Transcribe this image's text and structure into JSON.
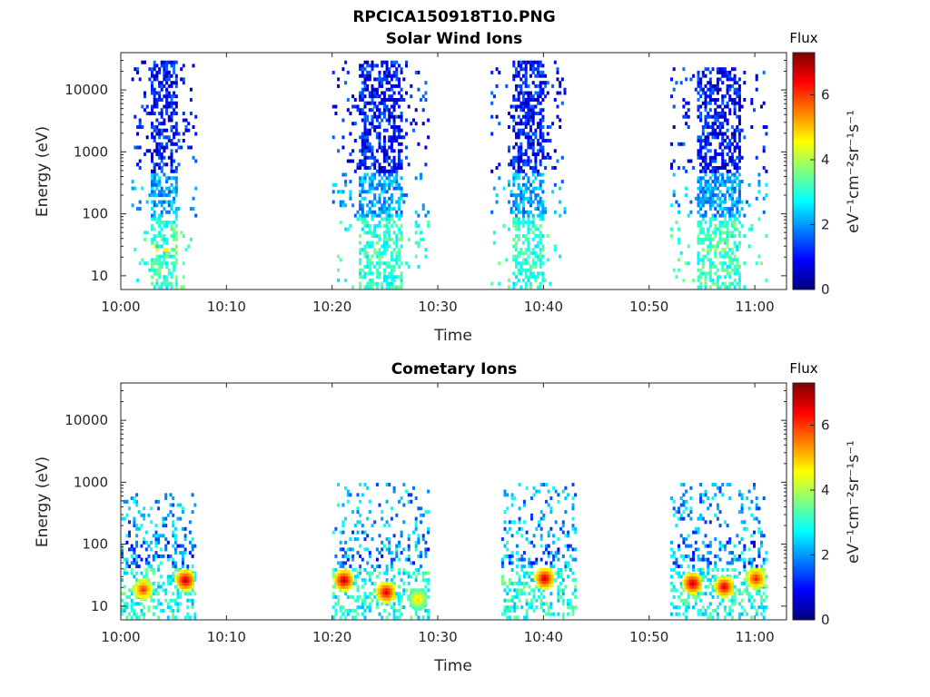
{
  "figure_title": "RPCICA150918T10.PNG",
  "colormap": [
    "#00007f",
    "#0000ff",
    "#007fff",
    "#00ffff",
    "#7fff7f",
    "#ffff00",
    "#ff7f00",
    "#ff0000",
    "#7f0000"
  ],
  "chart_data": [
    {
      "type": "heatmap",
      "title": "Solar Wind Ions",
      "xlabel": "Time",
      "ylabel": "Energy (eV)",
      "x_ticks": [
        "10:00",
        "10:10",
        "10:20",
        "10:30",
        "10:40",
        "10:50",
        "11:00"
      ],
      "xlim": [
        "10:00",
        "11:03"
      ],
      "y_scale": "log",
      "y_ticks": [
        {
          "value": 10,
          "label": "10"
        },
        {
          "value": 100,
          "label": "100"
        },
        {
          "value": 1000,
          "label": "1000"
        },
        {
          "value": 10000,
          "label": "10000"
        }
      ],
      "ylim": [
        6,
        40000
      ],
      "colorbar": {
        "title": "Flux",
        "label": "eV⁻¹cm⁻²sr⁻¹s⁻¹",
        "range": [
          0,
          7.3
        ],
        "ticks": [
          "0",
          "2",
          "4",
          "6"
        ]
      },
      "bursts": [
        {
          "t0": "10:01",
          "t1": "10:07",
          "emax": 30000,
          "peak_flux": 4.6,
          "peak_energy": 30
        },
        {
          "t0": "10:20",
          "t1": "10:29",
          "emax": 30000,
          "peak_flux": 3.2,
          "peak_energy": 15
        },
        {
          "t0": "10:35",
          "t1": "10:42",
          "emax": 30000,
          "peak_flux": 3.0,
          "peak_energy": 15
        },
        {
          "t0": "10:52",
          "t1": "11:01",
          "emax": 25000,
          "peak_flux": 3.8,
          "peak_energy": 30
        }
      ]
    },
    {
      "type": "heatmap",
      "title": "Cometary Ions",
      "xlabel": "Time",
      "ylabel": "Energy (eV)",
      "x_ticks": [
        "10:00",
        "10:10",
        "10:20",
        "10:30",
        "10:40",
        "10:50",
        "11:00"
      ],
      "xlim": [
        "10:00",
        "11:03"
      ],
      "y_scale": "log",
      "y_ticks": [
        {
          "value": 10,
          "label": "10"
        },
        {
          "value": 100,
          "label": "100"
        },
        {
          "value": 1000,
          "label": "1000"
        },
        {
          "value": 10000,
          "label": "10000"
        }
      ],
      "ylim": [
        6,
        40000
      ],
      "colorbar": {
        "title": "Flux",
        "label": "eV⁻¹cm⁻²sr⁻¹s⁻¹",
        "range": [
          0,
          7.3
        ],
        "ticks": [
          "0",
          "2",
          "4",
          "6"
        ]
      },
      "hotspots": [
        {
          "time": "10:02",
          "energy": 20,
          "flux": 6.2
        },
        {
          "time": "10:06",
          "energy": 28,
          "flux": 7.0
        },
        {
          "time": "10:21",
          "energy": 28,
          "flux": 7.0
        },
        {
          "time": "10:25",
          "energy": 18,
          "flux": 6.8
        },
        {
          "time": "10:28",
          "energy": 14,
          "flux": 5.0
        },
        {
          "time": "10:40",
          "energy": 30,
          "flux": 6.9
        },
        {
          "time": "10:54",
          "energy": 25,
          "flux": 7.0
        },
        {
          "time": "10:57",
          "energy": 22,
          "flux": 6.8
        },
        {
          "time": "11:00",
          "energy": 30,
          "flux": 6.4
        }
      ],
      "bursts": [
        {
          "t0": "10:00",
          "t1": "10:07",
          "emax": 700
        },
        {
          "t0": "10:20",
          "t1": "10:29",
          "emax": 1100
        },
        {
          "t0": "10:36",
          "t1": "10:43",
          "emax": 1100
        },
        {
          "t0": "10:52",
          "t1": "11:01",
          "emax": 1100
        }
      ]
    }
  ]
}
